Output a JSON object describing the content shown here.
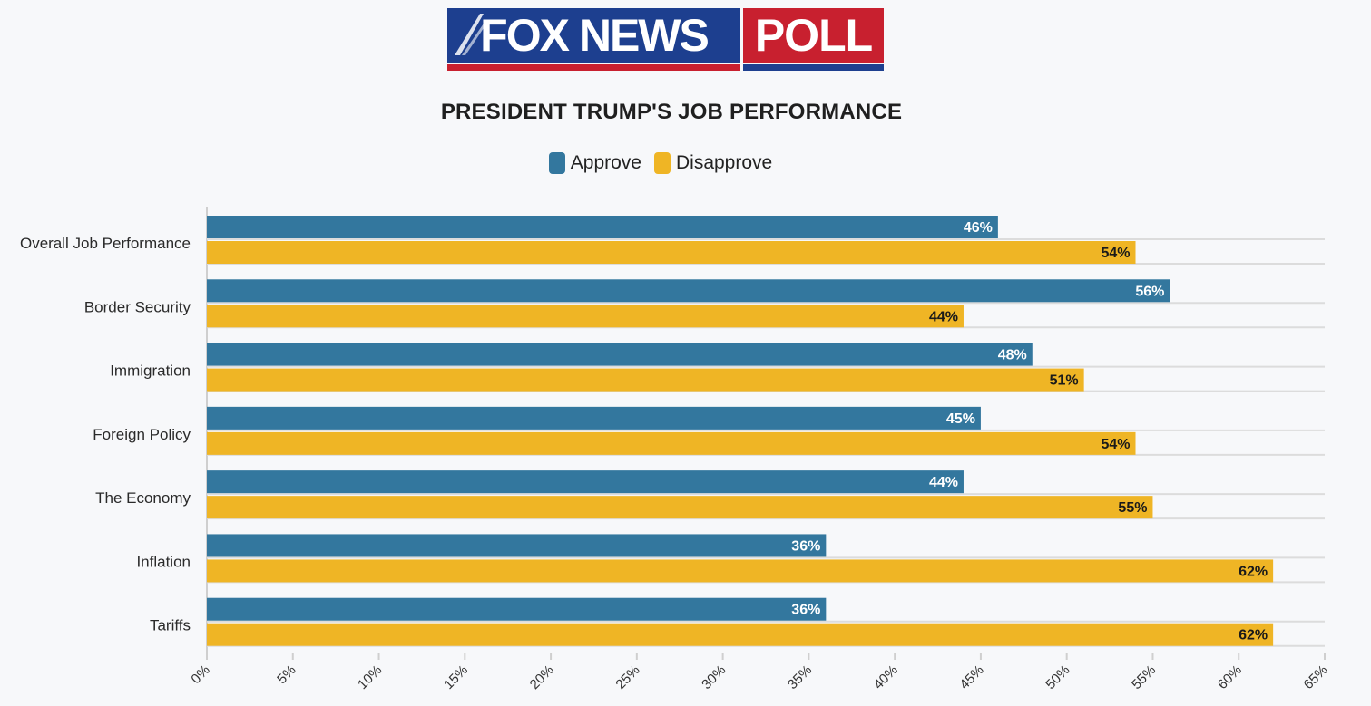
{
  "logo": {
    "fox": "FOX NEWS",
    "poll": "POLL"
  },
  "colors": {
    "approve": "#33779e",
    "disapprove": "#efb525",
    "grid": "#dcdcdc",
    "axis": "#cfcfcf"
  },
  "chart_data": {
    "type": "bar",
    "orientation": "horizontal",
    "title": "PRESIDENT TRUMP'S JOB PERFORMANCE",
    "categories": [
      "Overall Job Performance",
      "Border Security",
      "Immigration",
      "Foreign Policy",
      "The Economy",
      "Inflation",
      "Tariffs"
    ],
    "series": [
      {
        "name": "Approve",
        "values": [
          46,
          56,
          48,
          45,
          44,
          36,
          36
        ],
        "labels": [
          "46%",
          "56%",
          "48%",
          "45%",
          "44%",
          "36%",
          "36%"
        ]
      },
      {
        "name": "Disapprove",
        "values": [
          54,
          44,
          51,
          54,
          55,
          62,
          62
        ],
        "labels": [
          "54%",
          "44%",
          "51%",
          "54%",
          "55%",
          "62%",
          "62%"
        ]
      }
    ],
    "xlim": [
      0,
      65
    ],
    "xticks": [
      "0%",
      "5%",
      "10%",
      "15%",
      "20%",
      "25%",
      "30%",
      "35%",
      "40%",
      "45%",
      "50%",
      "55%",
      "60%",
      "65%"
    ],
    "legend": "top-center",
    "grid": true
  }
}
